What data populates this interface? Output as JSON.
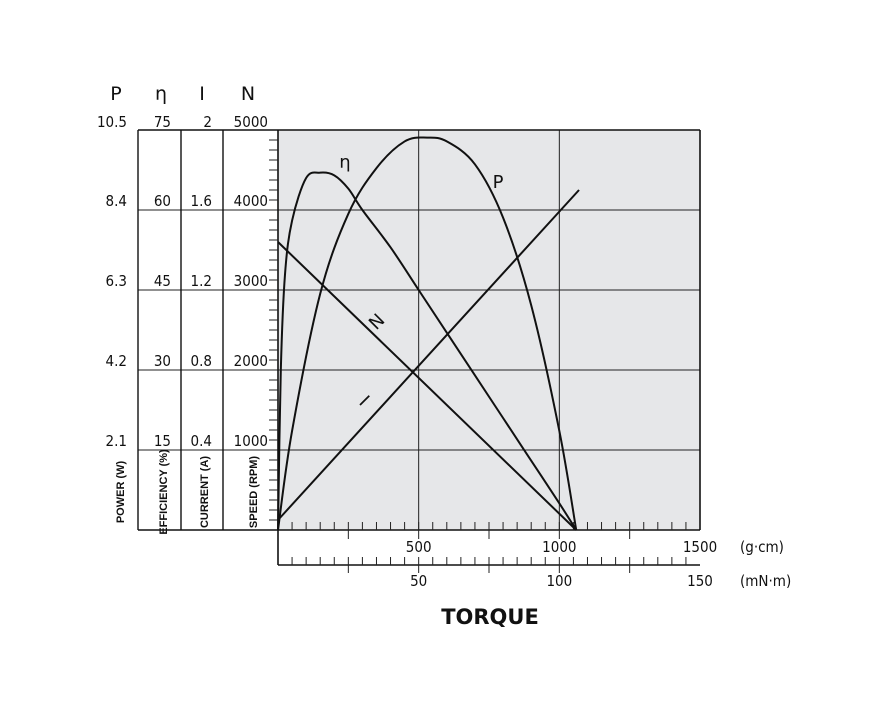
{
  "chart_data": {
    "type": "line",
    "title": "TORQUE",
    "x_axes": [
      {
        "unit": "(g·cm)",
        "range": [
          0,
          1500
        ],
        "ticks": [
          "500",
          "1000",
          "1500"
        ]
      },
      {
        "unit": "(mN·m)",
        "range": [
          0,
          150
        ],
        "ticks": [
          "50",
          "100",
          "150"
        ]
      }
    ],
    "y_axes": [
      {
        "symbol": "P",
        "label": "POWER (W)",
        "top": "10.5",
        "ticks": [
          "8.4",
          "6.3",
          "4.2",
          "2.1"
        ],
        "range": [
          0,
          10.5
        ]
      },
      {
        "symbol": "η",
        "label": "EFFICIENCY (%)",
        "top": "75",
        "ticks": [
          "60",
          "45",
          "30",
          "15"
        ],
        "range": [
          0,
          75
        ]
      },
      {
        "symbol": "I",
        "label": "CURRENT (A)",
        "top": "2",
        "ticks": [
          "1.6",
          "1.2",
          "0.8",
          "0.4"
        ],
        "range": [
          0,
          2
        ]
      },
      {
        "symbol": "N",
        "label": "SPEED (RPM)",
        "top": "5000",
        "ticks": [
          "4000",
          "3000",
          "2000",
          "1000"
        ],
        "range": [
          0,
          5000
        ]
      }
    ],
    "grid": true,
    "series": [
      {
        "name": "N",
        "axis": "N",
        "x": [
          0,
          1060
        ],
        "y": [
          3600,
          0
        ]
      },
      {
        "name": "I",
        "axis": "I",
        "x": [
          0,
          1070
        ],
        "y": [
          0.05,
          1.7
        ]
      },
      {
        "name": "P",
        "axis": "P",
        "x": [
          0,
          50,
          150,
          250,
          350,
          450,
          530,
          600,
          700,
          800,
          900,
          1000,
          1060
        ],
        "y": [
          0,
          2.6,
          6.2,
          8.3,
          9.5,
          10.2,
          10.3,
          10.2,
          9.6,
          8.2,
          5.9,
          2.6,
          0
        ]
      },
      {
        "name": "η",
        "axis": "η",
        "x": [
          0,
          10,
          25,
          50,
          100,
          150,
          200,
          250,
          300,
          400,
          500,
          600,
          700,
          800,
          900,
          1000,
          1060
        ],
        "y": [
          0,
          30,
          48,
          58,
          66,
          67,
          66.5,
          64,
          60,
          53,
          45,
          37,
          29,
          21,
          13,
          5,
          0
        ]
      }
    ]
  }
}
